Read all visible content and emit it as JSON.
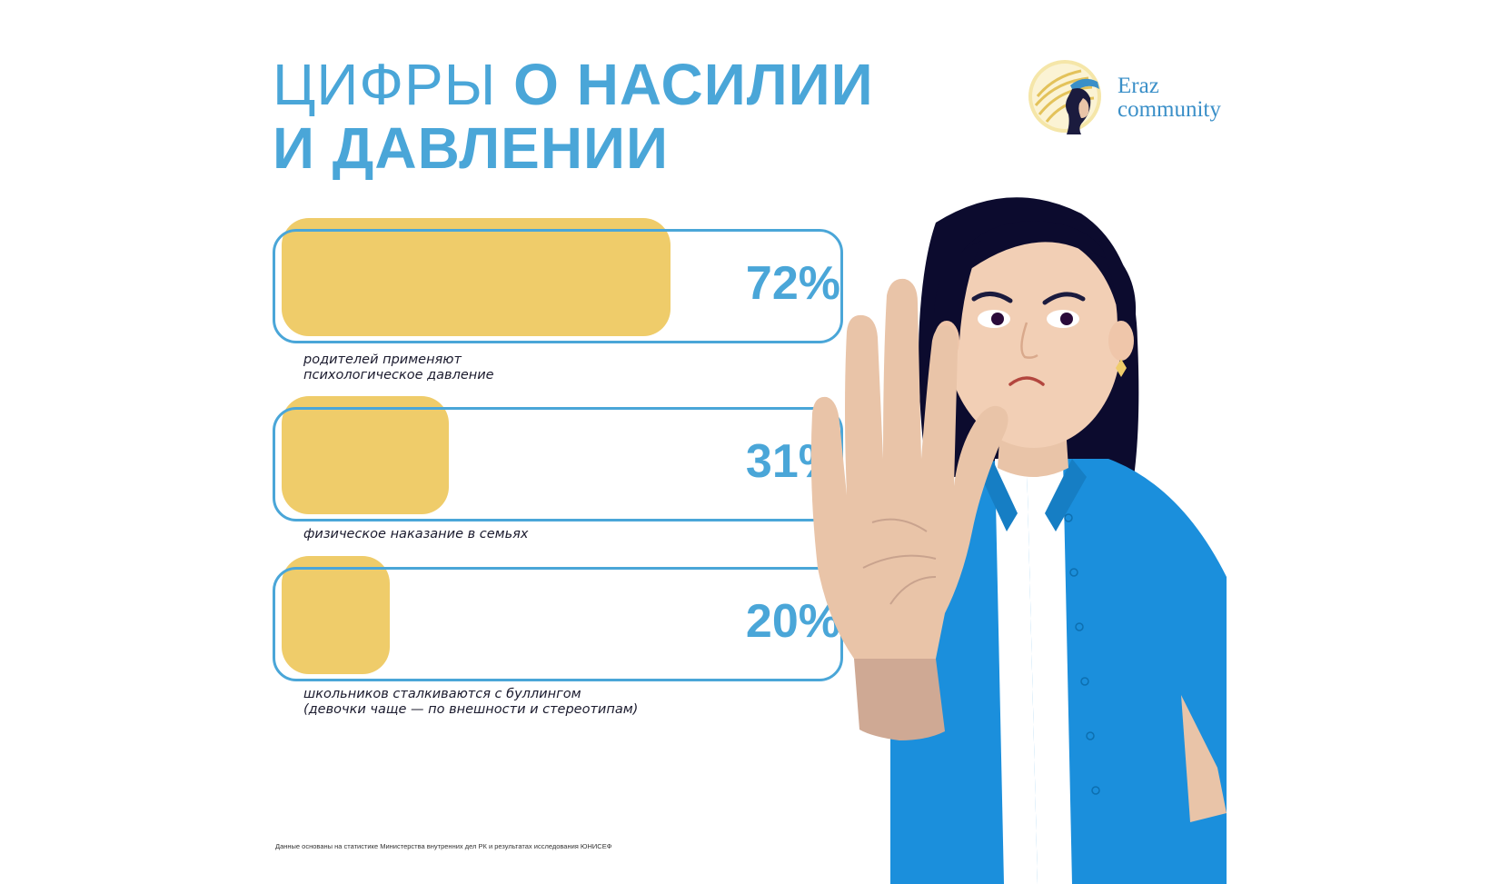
{
  "title": {
    "line1_light": "ЦИФРЫ",
    "line1_bold": "О НАСИЛИИ",
    "line2_bold": "И ДАВЛЕНИИ"
  },
  "logo": {
    "line1": "Eraz",
    "line2": "community"
  },
  "chart_data": {
    "type": "bar",
    "orientation": "horizontal",
    "unit": "%",
    "xlim": [
      0,
      100
    ],
    "values": [
      72,
      31,
      20
    ],
    "value_labels": [
      "72%",
      "31%",
      "20%"
    ],
    "categories": [
      [
        "родителей применяют",
        "психологическое давление"
      ],
      [
        "физическое наказание в семьях"
      ],
      [
        "школьников сталкиваются с буллингом",
        "(девочки чаще — по внешности и стереотипам)"
      ]
    ]
  },
  "footnote": "Данные основаны на статистике Министерства внутренних дел РК и результатах исследования ЮНИСЕФ",
  "colors": {
    "accent_blue": "#4aa6d8",
    "bar_yellow": "#efcc6a",
    "text_dark": "#1b1b2e",
    "shirt_blue": "#1b8fdc"
  }
}
